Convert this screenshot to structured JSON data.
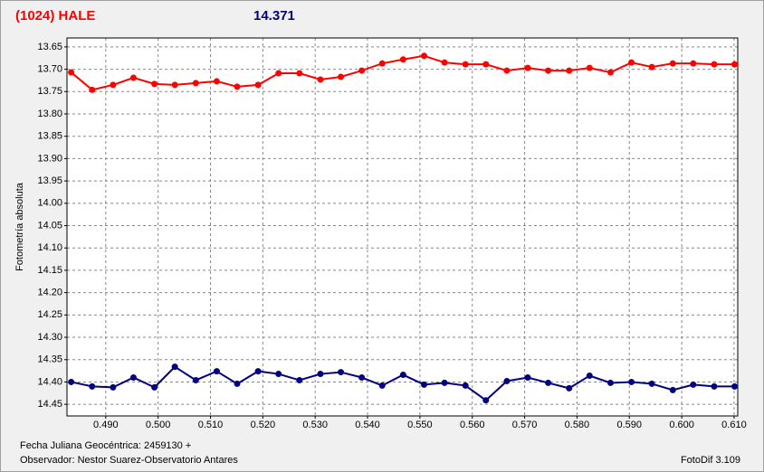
{
  "chart_data": {
    "type": "line",
    "title": "(1024) HALE",
    "subtitle": "14.371",
    "ylabel": "Fotometría absoluta",
    "xlabel": "Fecha Juliana Geocéntrica: 2459130 +",
    "observer": "Observador: Nestor Suarez-Observatorio Antares",
    "software": "FotoDif 3.109",
    "y_inverted": true,
    "grid": true,
    "xlim": [
      0.4826,
      0.6107
    ],
    "ylim": [
      13.63,
      14.476
    ],
    "xticks": [
      {
        "value": 0.49,
        "label": "0.490"
      },
      {
        "value": 0.5,
        "label": "0.500"
      },
      {
        "value": 0.51,
        "label": "0.510"
      },
      {
        "value": 0.52,
        "label": "0.520"
      },
      {
        "value": 0.53,
        "label": "0.530"
      },
      {
        "value": 0.54,
        "label": "0.540"
      },
      {
        "value": 0.55,
        "label": "0.550"
      },
      {
        "value": 0.56,
        "label": "0.560"
      },
      {
        "value": 0.57,
        "label": "0.570"
      },
      {
        "value": 0.58,
        "label": "0.580"
      },
      {
        "value": 0.59,
        "label": "0.590"
      },
      {
        "value": 0.6,
        "label": "0.600"
      },
      {
        "value": 0.61,
        "label": "0.610"
      }
    ],
    "yticks": [
      {
        "value": 13.65,
        "label": "13.65"
      },
      {
        "value": 13.7,
        "label": "13.70"
      },
      {
        "value": 13.75,
        "label": "13.75"
      },
      {
        "value": 13.8,
        "label": "13.80"
      },
      {
        "value": 13.85,
        "label": "13.85"
      },
      {
        "value": 13.9,
        "label": "13.90"
      },
      {
        "value": 13.95,
        "label": "13.95"
      },
      {
        "value": 14.0,
        "label": "14.00"
      },
      {
        "value": 14.05,
        "label": "14.05"
      },
      {
        "value": 14.1,
        "label": "14.10"
      },
      {
        "value": 14.15,
        "label": "14.15"
      },
      {
        "value": 14.2,
        "label": "14.20"
      },
      {
        "value": 14.25,
        "label": "14.25"
      },
      {
        "value": 14.3,
        "label": "14.30"
      },
      {
        "value": 14.35,
        "label": "14.35"
      },
      {
        "value": 14.4,
        "label": "14.40"
      },
      {
        "value": 14.45,
        "label": "14.45"
      }
    ],
    "x": [
      0.4834,
      0.4874,
      0.4914,
      0.4953,
      0.4993,
      0.5032,
      0.5072,
      0.5112,
      0.5151,
      0.5191,
      0.523,
      0.527,
      0.531,
      0.5349,
      0.5389,
      0.5428,
      0.5468,
      0.5508,
      0.5547,
      0.5587,
      0.5626,
      0.5666,
      0.5706,
      0.5745,
      0.5785,
      0.5824,
      0.5864,
      0.5904,
      0.5943,
      0.5983,
      0.6022,
      0.6062,
      0.6101
    ],
    "series": [
      {
        "color": "#ff0000",
        "values": [
          13.707,
          13.746,
          13.735,
          13.719,
          13.733,
          13.735,
          13.731,
          13.727,
          13.739,
          13.735,
          13.709,
          13.709,
          13.723,
          13.717,
          13.703,
          13.687,
          13.678,
          13.67,
          13.685,
          13.689,
          13.689,
          13.703,
          13.697,
          13.703,
          13.703,
          13.697,
          13.707,
          13.685,
          13.695,
          13.687,
          13.687,
          13.689,
          13.689
        ]
      },
      {
        "color": "#000080",
        "values": [
          14.4,
          14.41,
          14.412,
          14.39,
          14.412,
          14.366,
          14.396,
          14.376,
          14.404,
          14.376,
          14.382,
          14.396,
          14.382,
          14.378,
          14.39,
          14.408,
          14.384,
          14.406,
          14.402,
          14.408,
          14.441,
          14.398,
          14.39,
          14.402,
          14.414,
          14.386,
          14.402,
          14.4,
          14.404,
          14.418,
          14.406,
          14.41,
          14.41
        ]
      }
    ]
  }
}
